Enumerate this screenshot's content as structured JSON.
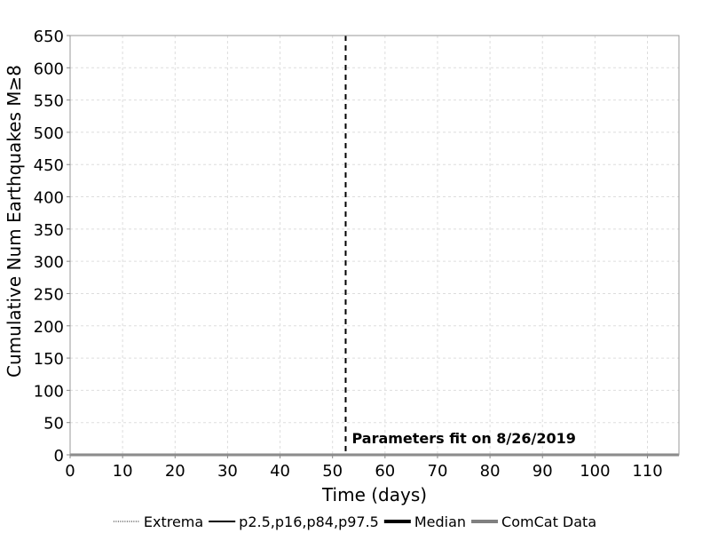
{
  "chart_data": {
    "type": "line",
    "xlabel": "Time (days)",
    "ylabel": "Cumulative Num Earthquakes M≥8",
    "xlim": [
      0,
      116
    ],
    "ylim": [
      0,
      650
    ],
    "x_ticks": [
      0,
      10,
      20,
      30,
      40,
      50,
      60,
      70,
      80,
      90,
      100,
      110
    ],
    "y_ticks": [
      0,
      50,
      100,
      150,
      200,
      250,
      300,
      350,
      400,
      450,
      500,
      550,
      600,
      650
    ],
    "grid": true,
    "legend_position": "bottom",
    "legend": [
      {
        "label": "Extrema",
        "style": "dotted",
        "color": "#000000"
      },
      {
        "label": "p2.5,p16,p84,p97.5",
        "style": "solid",
        "color": "#000000"
      },
      {
        "label": "Median",
        "style": "solid-thick",
        "color": "#000000"
      },
      {
        "label": "ComCat Data",
        "style": "solid-thick",
        "color": "#808080"
      }
    ],
    "series": [
      {
        "name": "ComCat Data",
        "color": "#808080",
        "x": [
          0,
          116
        ],
        "y": [
          0,
          0
        ]
      }
    ],
    "annotation": {
      "x": 52.5,
      "text": "Parameters fit on 8/26/2019"
    }
  }
}
